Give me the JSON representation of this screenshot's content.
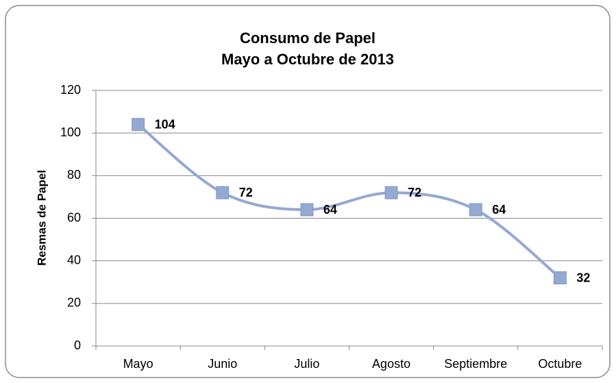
{
  "chart_data": {
    "type": "line",
    "title": "Consumo de Papel",
    "subtitle": "Mayo a Octubre de 2013",
    "y_label": "Resmas de Papel",
    "categories": [
      "Mayo",
      "Junio",
      "Julio",
      "Agosto",
      "Septiembre",
      "Octubre"
    ],
    "series": [
      {
        "name": "Resmas de Papel",
        "color": "#94a9d2",
        "values": [
          104,
          72,
          64,
          72,
          64,
          32
        ]
      }
    ],
    "ylim": [
      0,
      120
    ],
    "yticks": [
      0,
      20,
      40,
      60,
      80,
      100,
      120
    ],
    "grid": true,
    "smooth": true
  }
}
